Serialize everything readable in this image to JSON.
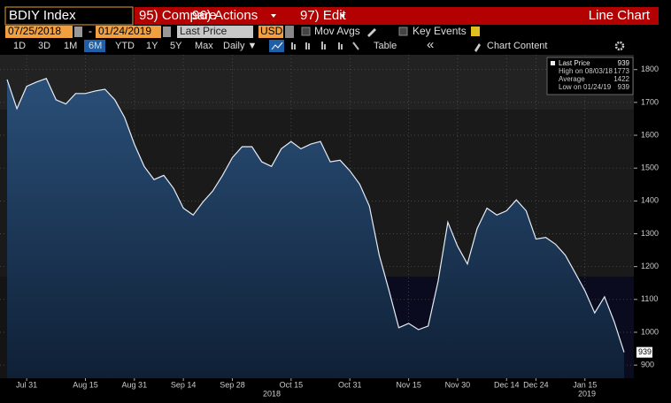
{
  "toolbar": {
    "security": "BDIY Index",
    "menu": [
      "95) Compare",
      "96) Actions",
      "97) Edit"
    ],
    "view": "Line Chart",
    "start_date": "07/25/2018",
    "date_separator": "-",
    "end_date": "01/24/2019",
    "field": "Last Price",
    "currency": "USD",
    "mov_avgs": "Mov Avgs",
    "key_events": "Key Events",
    "periods": [
      "1D",
      "3D",
      "1M",
      "6M",
      "YTD",
      "1Y",
      "5Y",
      "Max"
    ],
    "selected_period": "6M",
    "frequency": "Daily ▼",
    "table": "Table",
    "collapse": "«",
    "chart_content": "Chart Content"
  },
  "chart_data": {
    "type": "area",
    "categories": [
      null,
      null,
      "Jul 31",
      null,
      null,
      null,
      null,
      null,
      "Aug 15",
      null,
      null,
      null,
      null,
      "Aug 31",
      null,
      null,
      null,
      null,
      "Sep 14",
      null,
      null,
      null,
      null,
      "Sep 28",
      null,
      null,
      null,
      null,
      null,
      "Oct 15",
      null,
      null,
      null,
      null,
      null,
      "Oct 31",
      null,
      null,
      null,
      null,
      null,
      "Nov 15",
      null,
      null,
      null,
      null,
      "Nov 30",
      null,
      null,
      null,
      null,
      "Dec 14",
      null,
      null,
      "Dec 24",
      null,
      null,
      null,
      null,
      "Jan 15",
      null,
      null,
      null,
      null
    ],
    "series": [
      {
        "name": "Last Price",
        "color": "#e6edf5",
        "values": [
          1770,
          1681,
          1749,
          1762,
          1773,
          1708,
          1695,
          1727,
          1727,
          1735,
          1740,
          1708,
          1654,
          1573,
          1505,
          1465,
          1478,
          1438,
          1378,
          1357,
          1397,
          1430,
          1478,
          1532,
          1565,
          1565,
          1519,
          1505,
          1559,
          1581,
          1559,
          1573,
          1581,
          1519,
          1524,
          1492,
          1451,
          1384,
          1235,
          1127,
          1014,
          1027,
          1008,
          1019,
          1154,
          1335,
          1262,
          1208,
          1316,
          1378,
          1357,
          1370,
          1403,
          1370,
          1284,
          1289,
          1268,
          1235,
          1181,
          1127,
          1059,
          1108,
          1032,
          939
        ]
      }
    ],
    "x_year_labels": [
      "2018",
      "2019"
    ],
    "ylim": [
      860,
      1845
    ],
    "yticks": [
      900,
      1000,
      1100,
      1200,
      1300,
      1400,
      1500,
      1600,
      1700,
      1800
    ],
    "grid": true,
    "stats": [
      {
        "label": "High on 08/03/18",
        "value": 1773
      },
      {
        "label": "Average",
        "value": 1422
      },
      {
        "label": "Low on 01/24/19",
        "value": 939
      }
    ]
  }
}
